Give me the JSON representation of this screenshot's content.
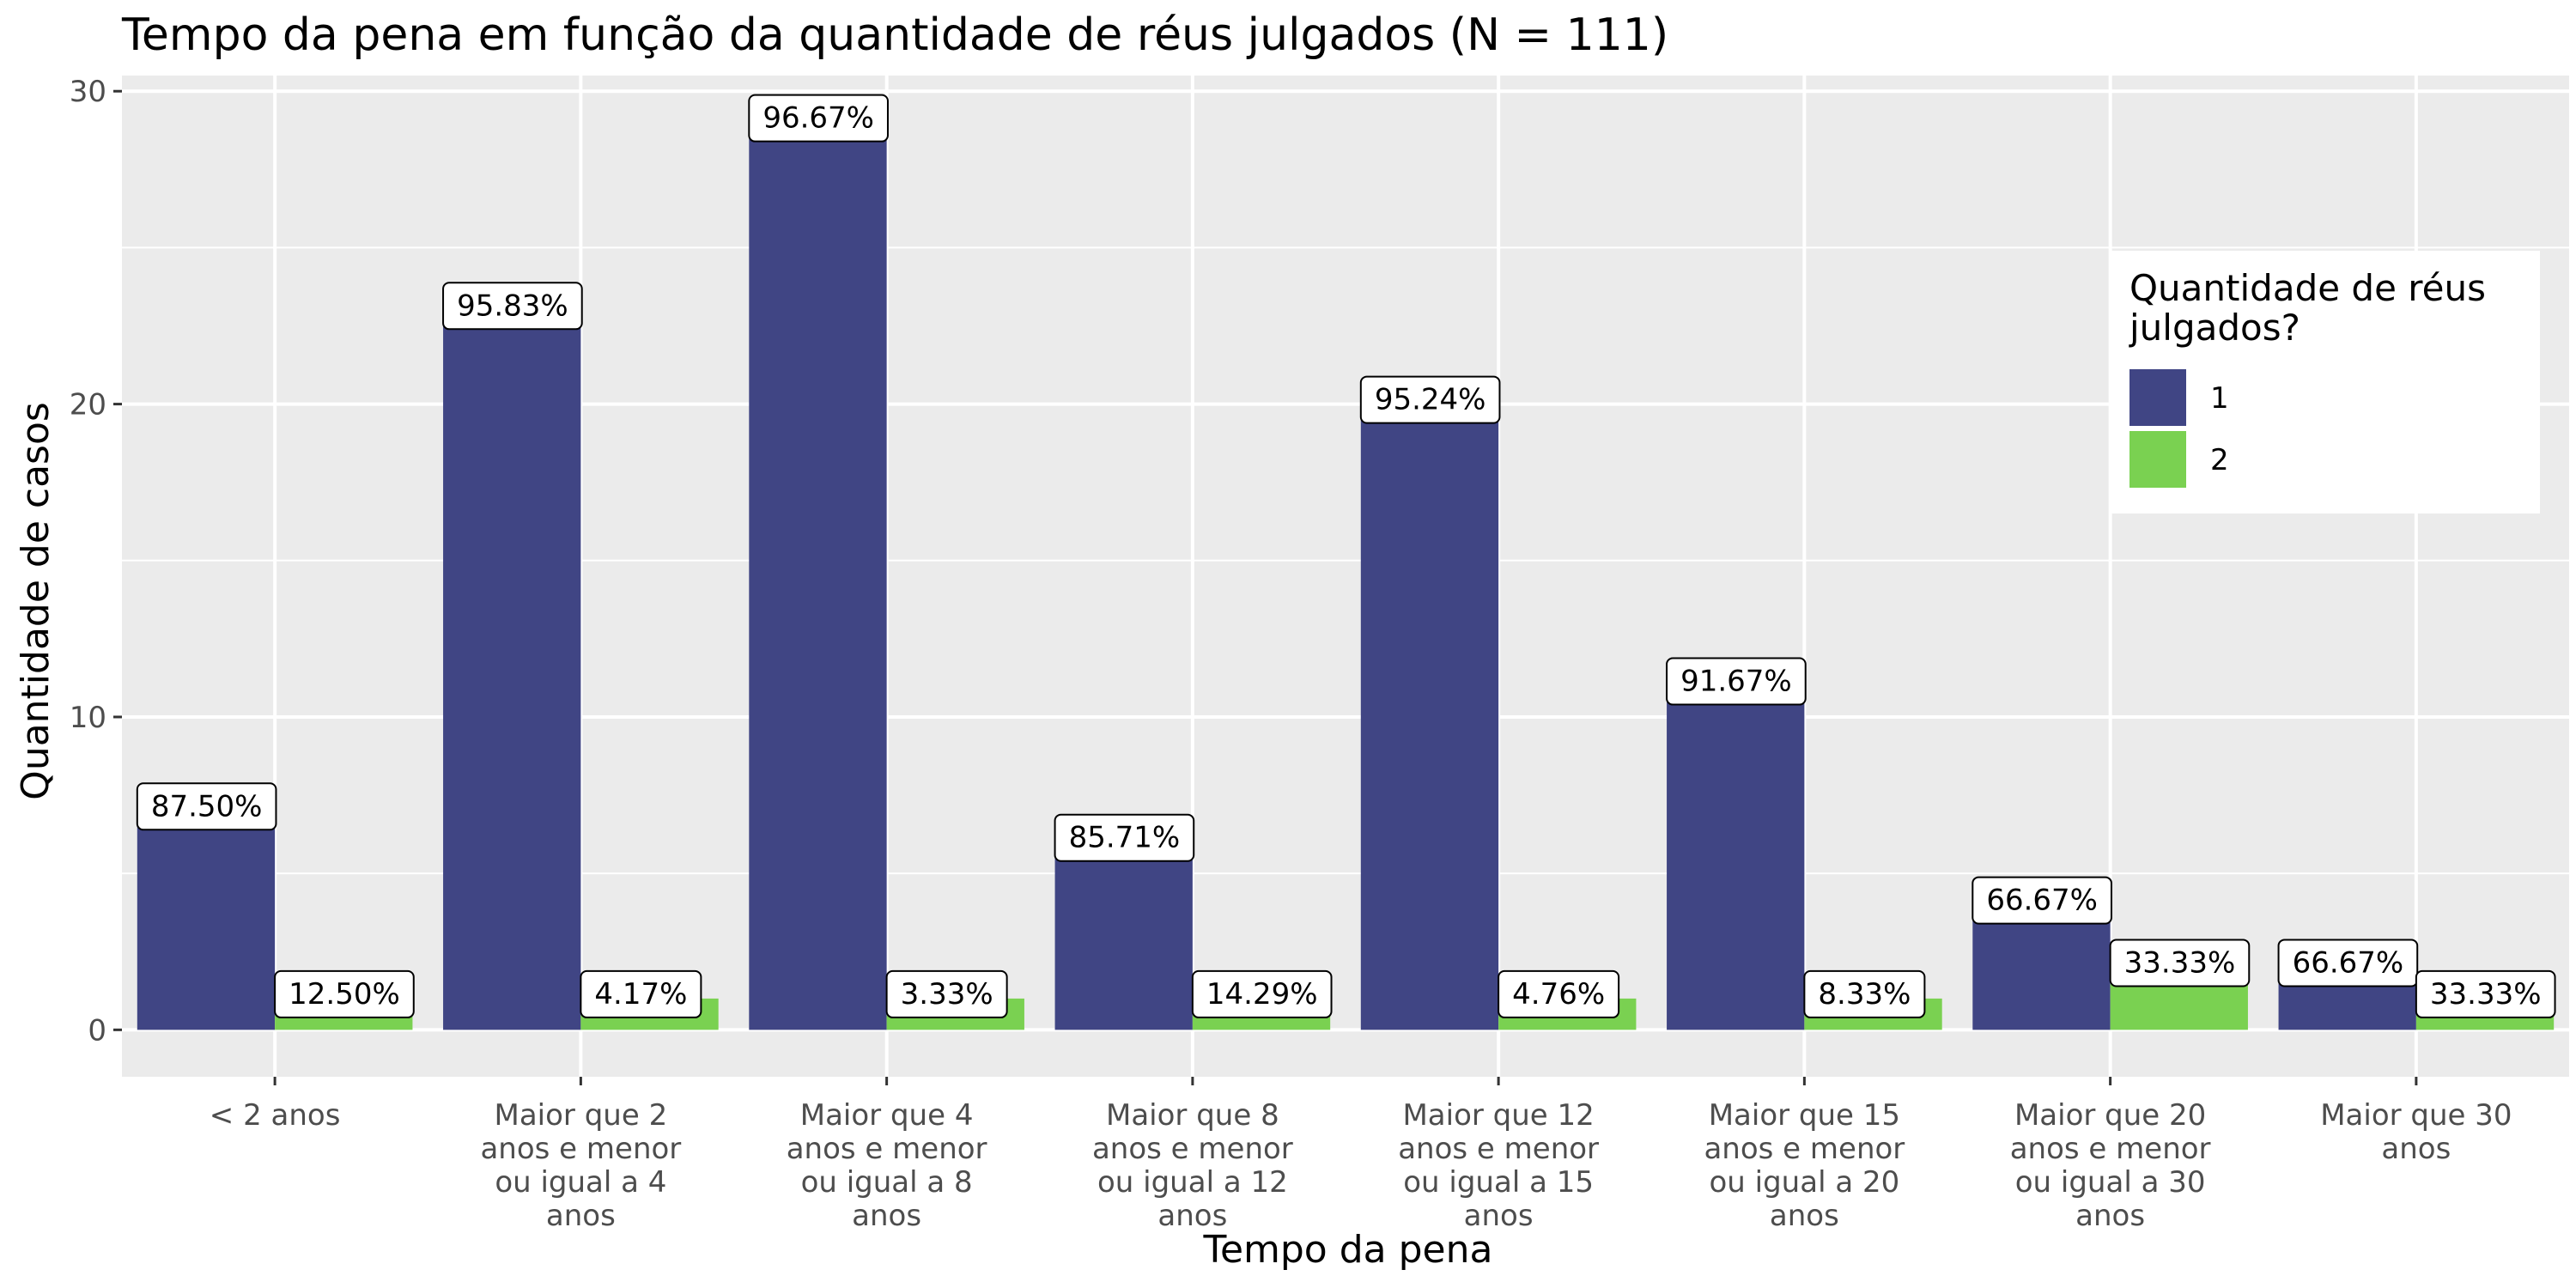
{
  "chart_data": {
    "type": "bar",
    "title": "Tempo da pena em função da quantidade de réus julgados (N = 111)",
    "xlabel": "Tempo da pena",
    "ylabel": "Quantidade de casos",
    "ylim": [
      -1.5,
      30.5
    ],
    "yticks": [
      0,
      10,
      20,
      30
    ],
    "grid": true,
    "legend": {
      "title": [
        "Quantidade de réus",
        "julgados?"
      ],
      "placement": "right"
    },
    "categories": [
      [
        "< 2 anos"
      ],
      [
        "Maior que 2",
        "anos e menor",
        "ou igual a 4",
        "anos"
      ],
      [
        "Maior que 4",
        "anos e menor",
        "ou igual a 8",
        "anos"
      ],
      [
        "Maior que 8",
        "anos e menor",
        "ou igual a 12",
        "anos"
      ],
      [
        "Maior que 12",
        "anos e menor",
        "ou igual a 15",
        "anos"
      ],
      [
        "Maior que 15",
        "anos e menor",
        "ou igual a 20",
        "anos"
      ],
      [
        "Maior que 20",
        "anos e menor",
        "ou igual a 30",
        "anos"
      ],
      [
        "Maior que 30",
        "anos"
      ]
    ],
    "series": [
      {
        "name": "1",
        "color": "#404584",
        "values": [
          7,
          23,
          29,
          6,
          20,
          11,
          4,
          2
        ],
        "labels": [
          "87.50%",
          "95.83%",
          "96.67%",
          "85.71%",
          "95.24%",
          "91.67%",
          "66.67%",
          "66.67%"
        ]
      },
      {
        "name": "2",
        "color": "#7AD151",
        "values": [
          1,
          1,
          1,
          1,
          1,
          1,
          2,
          1
        ],
        "labels": [
          "12.50%",
          "4.17%",
          "3.33%",
          "14.29%",
          "4.76%",
          "8.33%",
          "33.33%",
          "33.33%"
        ]
      }
    ]
  }
}
